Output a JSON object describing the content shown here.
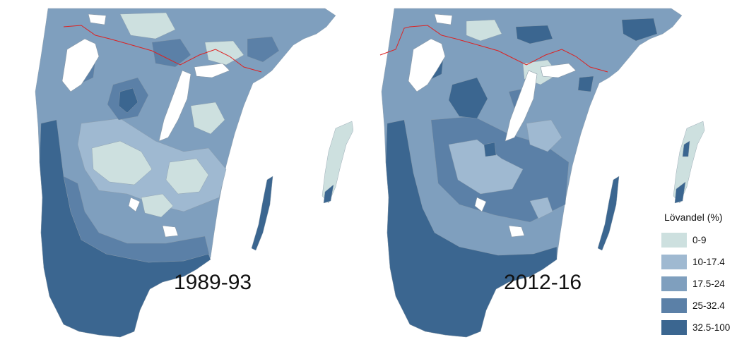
{
  "maps": [
    {
      "id": "left",
      "period_label": "1989-93"
    },
    {
      "id": "right",
      "period_label": "2012-16"
    }
  ],
  "legend": {
    "title": "Lövandel (%)",
    "classes": [
      {
        "label": "0-9",
        "color": "#cde0df"
      },
      {
        "label": "10-17.4",
        "color": "#9fb9d1"
      },
      {
        "label": "17.5-24",
        "color": "#7f9fbe"
      },
      {
        "label": "25-32.4",
        "color": "#5b80a7"
      },
      {
        "label": "32.5-100",
        "color": "#3b6690"
      }
    ]
  },
  "colors": {
    "lake": "#ffffff",
    "county_border": "#dd2222",
    "coast_outline": "#8a9aa8"
  }
}
